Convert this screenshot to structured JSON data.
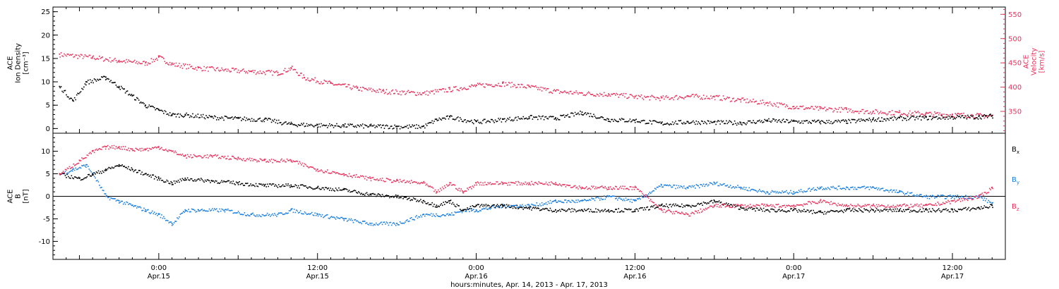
{
  "colors": {
    "axis": "#000000",
    "velocity": "#e8335d",
    "density": "#000000",
    "bx": "#000000",
    "by": "#1a7fe0",
    "bz": "#e8335d"
  },
  "chart_data": [
    {
      "type": "scatter",
      "panel": "top",
      "left_ylabel": [
        "ACE",
        "Ion Density",
        "[cm⁻³]"
      ],
      "right_ylabel": [
        "ACE",
        "Velocity",
        "[km/s]"
      ],
      "left_ylim": [
        -1,
        26
      ],
      "right_ylim": [
        305,
        565
      ],
      "left_ticks": [
        "0",
        "5",
        "10",
        "15",
        "20",
        "25"
      ],
      "left_tick_values": [
        0,
        5,
        10,
        15,
        20,
        25
      ],
      "right_ticks": [
        "350",
        "400",
        "450",
        "500",
        "550"
      ],
      "right_tick_values": [
        350,
        400,
        450,
        500,
        550
      ],
      "xlim": [
        -8,
        64
      ],
      "series": [
        {
          "color_key": "velocity",
          "axis": "right",
          "x": [
            -7.5,
            -5,
            -3,
            -1,
            0,
            1,
            3,
            5,
            7,
            9,
            10,
            11,
            13,
            15,
            17,
            20,
            22,
            24,
            26,
            28,
            30,
            32,
            34,
            36,
            38,
            40,
            42,
            44,
            46,
            48,
            50,
            52,
            54,
            56,
            58,
            60,
            62,
            63
          ],
          "values": [
            468,
            462,
            455,
            450,
            462,
            448,
            440,
            436,
            433,
            430,
            440,
            420,
            408,
            398,
            392,
            388,
            396,
            404,
            408,
            401,
            392,
            388,
            386,
            381,
            378,
            382,
            380,
            374,
            368,
            360,
            356,
            354,
            350,
            348,
            346,
            344,
            342,
            341
          ]
        },
        {
          "color_key": "density",
          "axis": "left",
          "x": [
            -7.5,
            -6.5,
            -5.5,
            -4,
            -3,
            -2,
            -1,
            0,
            1,
            2,
            4,
            6,
            8,
            10,
            12,
            14,
            16,
            18,
            20,
            21,
            22,
            24,
            26,
            28,
            30,
            32,
            34,
            36,
            38,
            40,
            42,
            44,
            46,
            48,
            50,
            52,
            54,
            56,
            58,
            60,
            62,
            63
          ],
          "values": [
            9,
            6,
            10,
            11,
            9,
            7,
            5,
            4,
            3,
            3,
            2.5,
            2.2,
            2,
            1,
            0.8,
            0.7,
            0.6,
            0.5,
            0.5,
            2,
            2.5,
            1.5,
            2,
            2.5,
            2.3,
            3.5,
            2,
            1.8,
            1.2,
            1.5,
            1.4,
            1.3,
            1.8,
            1.6,
            1.5,
            1.6,
            2,
            2.3,
            2.4,
            2.5,
            2.6,
            2.8
          ]
        }
      ]
    },
    {
      "type": "scatter",
      "panel": "bottom",
      "left_ylabel": [
        "ACE",
        "B",
        "[nT]"
      ],
      "ylim": [
        -14,
        14
      ],
      "left_ticks": [
        "-10",
        "-5",
        "0",
        "5",
        "10"
      ],
      "left_tick_values": [
        -10,
        -5,
        0,
        5,
        10
      ],
      "xlim": [
        -8,
        64
      ],
      "legend": [
        "Bx",
        "By",
        "Bz"
      ],
      "x_tick_labels": [
        {
          "time": "0:00",
          "date": "Apr.15",
          "x": 0
        },
        {
          "time": "12:00",
          "date": "Apr.15",
          "x": 12
        },
        {
          "time": "0:00",
          "date": "Apr.16",
          "x": 24
        },
        {
          "time": "12:00",
          "date": "Apr.16",
          "x": 36
        },
        {
          "time": "0:00",
          "date": "Apr.17",
          "x": 48
        },
        {
          "time": "12:00",
          "date": "Apr.17",
          "x": 60
        }
      ],
      "xlabel": "hours:minutes, Apr. 14, 2013 - Apr. 17, 2013",
      "series": [
        {
          "name": "Bx",
          "color_key": "bx",
          "x": [
            -7.5,
            -6,
            -5,
            -4,
            -3,
            -2,
            -1,
            0,
            1,
            2,
            4,
            6,
            8,
            10,
            12,
            14,
            16,
            18,
            20,
            21,
            22,
            23,
            24,
            26,
            28,
            30,
            32,
            34,
            36,
            38,
            40,
            42,
            44,
            46,
            48,
            50,
            52,
            54,
            56,
            58,
            60,
            62,
            63
          ],
          "values": [
            5,
            4,
            5,
            6,
            7,
            6,
            5,
            4,
            3,
            4,
            3.5,
            3,
            2.5,
            2.5,
            2,
            1.5,
            0.5,
            0,
            -1,
            -2,
            -1,
            -3,
            -2,
            -2,
            -2.5,
            -3,
            -3,
            -3,
            -3,
            -2,
            -2,
            -1,
            -2.5,
            -3,
            -3,
            -3.5,
            -3,
            -3,
            -3,
            -3,
            -3,
            -2.5,
            -2
          ]
        },
        {
          "name": "By",
          "color_key": "by",
          "x": [
            -7.5,
            -6.5,
            -5.5,
            -5,
            -4,
            -3,
            -2,
            -1,
            0,
            1,
            2,
            3,
            5,
            7,
            9,
            10,
            12,
            14,
            16,
            18,
            20,
            22,
            23,
            24,
            26,
            28,
            30,
            32,
            34,
            36,
            38,
            40,
            42,
            44,
            46,
            48,
            50,
            52,
            54,
            56,
            58,
            60,
            62,
            63
          ],
          "values": [
            5,
            6,
            7,
            5,
            0,
            -1,
            -2,
            -3,
            -4,
            -6,
            -3,
            -3,
            -3,
            -4,
            -4,
            -3,
            -4,
            -5,
            -6,
            -6,
            -4,
            -4,
            -3,
            -3,
            -2,
            -2,
            -1,
            -1,
            0,
            -1,
            2.5,
            2,
            3,
            2,
            1,
            1,
            2,
            2,
            2,
            1,
            0,
            0,
            0,
            -1.5
          ]
        },
        {
          "name": "Bz",
          "color_key": "bz",
          "x": [
            -7.5,
            -6,
            -5,
            -4,
            -3,
            -2,
            -1,
            0,
            1,
            2,
            4,
            6,
            8,
            10,
            12,
            14,
            16,
            18,
            20,
            21,
            22,
            23,
            24,
            26,
            28,
            30,
            32,
            34,
            36,
            38,
            40,
            42,
            44,
            46,
            48,
            50,
            52,
            54,
            56,
            58,
            60,
            62,
            63
          ],
          "values": [
            5,
            8,
            10,
            11,
            11,
            10.5,
            10.5,
            11,
            10,
            9,
            9,
            8.5,
            8,
            8,
            6,
            5,
            4,
            3.5,
            3,
            1,
            3,
            1,
            3,
            3,
            3,
            3,
            2,
            2,
            2,
            -3,
            -4,
            -2,
            -2,
            -2,
            -2,
            -1,
            -2,
            -2,
            -2,
            -2,
            -1,
            0,
            2
          ]
        }
      ]
    }
  ]
}
